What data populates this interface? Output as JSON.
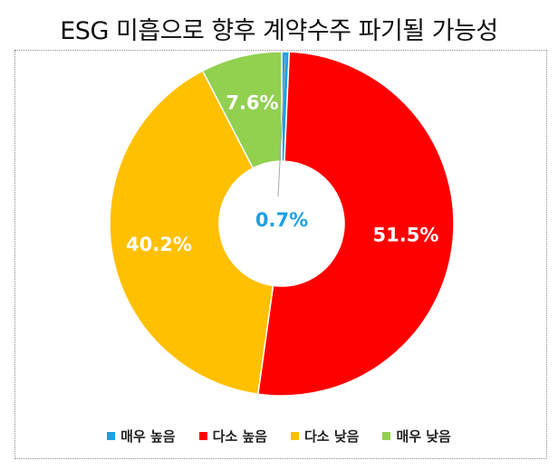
{
  "chart_data": {
    "type": "pie",
    "variant": "donut",
    "title": "ESG 미흡으로 향후 계약수주 파기될 가능성",
    "categories": [
      "매우 높음",
      "다소 높음",
      "다소 낮음",
      "매우 낮음"
    ],
    "values": [
      0.7,
      51.5,
      40.2,
      7.6
    ],
    "labels": [
      "0.7%",
      "51.5%",
      "40.2%",
      "7.6%"
    ],
    "colors": [
      "#1ea0e6",
      "#ff0000",
      "#ffc000",
      "#92d050"
    ],
    "legend_position": "bottom",
    "label_color": "#ffffff",
    "small_label_color": "#1ea0e6"
  }
}
